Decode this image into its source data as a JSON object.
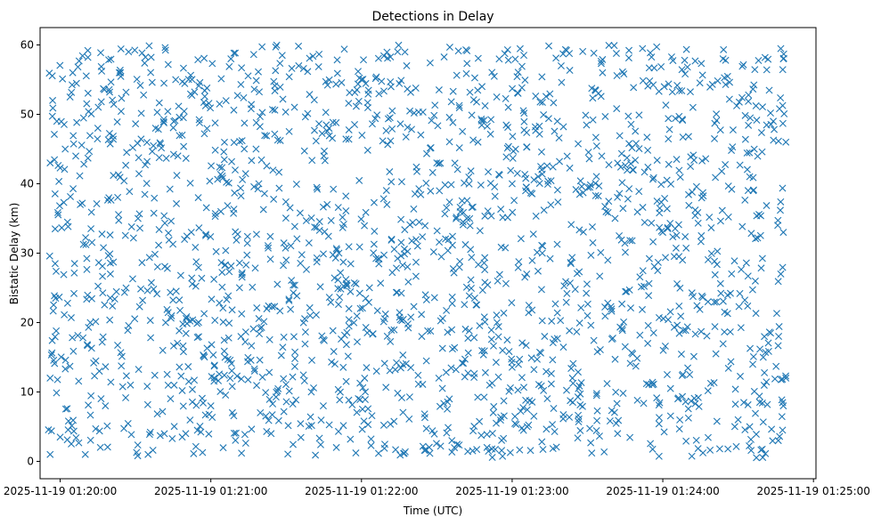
{
  "chart_data": {
    "type": "scatter",
    "title": "Detections in Delay",
    "xlabel": "Time (UTC)",
    "ylabel": "Bistatic Delay (km)",
    "marker": "x",
    "color": "#1f77b4",
    "grid": false,
    "legend": "none",
    "xlim": [
      "2025-11-19 01:19:52",
      "2025-11-19 01:25:01"
    ],
    "ylim": [
      -2.5,
      62.5
    ],
    "x_ticks": [
      "2025-11-19 01:20:00",
      "2025-11-19 01:21:00",
      "2025-11-19 01:22:00",
      "2025-11-19 01:23:00",
      "2025-11-19 01:24:00",
      "2025-11-19 01:25:00"
    ],
    "y_ticks": [
      "0",
      "10",
      "20",
      "30",
      "40",
      "50",
      "60"
    ],
    "y_tick_values": [
      0,
      10,
      20,
      30,
      40,
      50,
      60
    ],
    "x_range_of_detections": [
      "2025-11-19 01:19:55",
      "2025-11-19 01:24:49"
    ],
    "delay_range_of_detections": [
      0.5,
      60
    ],
    "detection_count": 2000,
    "points": [
      [
        "2025-11-19 01:19:56",
        1.0
      ],
      [
        "2025-11-19 01:19:56",
        12.0
      ],
      [
        "2025-11-19 01:19:56",
        43.0
      ],
      [
        "2025-11-19 01:19:57",
        52.0
      ],
      [
        "2025-11-19 01:19:58",
        28.5
      ],
      [
        "2025-11-19 01:19:58",
        33.5
      ],
      [
        "2025-11-19 01:20:00",
        3.5
      ],
      [
        "2025-11-19 01:20:02",
        45.0
      ],
      [
        "2025-11-19 01:20:05",
        56.0
      ],
      [
        "2025-11-19 01:20:08",
        37.0
      ],
      [
        "2025-11-19 01:20:10",
        1.0
      ],
      [
        "2025-11-19 01:20:12",
        20.0
      ],
      [
        "2025-11-19 01:20:15",
        48.0
      ],
      [
        "2025-11-19 01:20:18",
        8.0
      ],
      [
        "2025-11-19 01:20:20",
        27.0
      ],
      [
        "2025-11-19 01:20:24",
        56.0
      ],
      [
        "2025-11-19 01:20:28",
        11.0
      ],
      [
        "2025-11-19 01:20:31",
        35.0
      ],
      [
        "2025-11-19 01:20:35",
        1.0
      ],
      [
        "2025-11-19 01:20:38",
        48.0
      ],
      [
        "2025-11-19 01:20:42",
        20.0
      ],
      [
        "2025-11-19 01:20:46",
        55.0
      ],
      [
        "2025-11-19 01:20:50",
        4.0
      ],
      [
        "2025-11-19 01:20:55",
        38.0
      ],
      [
        "2025-11-19 01:21:00",
        8.0
      ],
      [
        "2025-11-19 01:21:04",
        36.0
      ],
      [
        "2025-11-19 01:21:08",
        58.0
      ],
      [
        "2025-11-19 01:21:12",
        18.0
      ],
      [
        "2025-11-19 01:21:18",
        45.0
      ],
      [
        "2025-11-19 01:21:24",
        4.0
      ],
      [
        "2025-11-19 01:21:30",
        29.0
      ],
      [
        "2025-11-19 01:21:35",
        57.0
      ],
      [
        "2025-11-19 01:21:40",
        10.0
      ],
      [
        "2025-11-19 01:21:45",
        44.0
      ],
      [
        "2025-11-19 01:21:50",
        2.0
      ],
      [
        "2025-11-19 01:21:55",
        22.0
      ],
      [
        "2025-11-19 01:22:00",
        55.0
      ],
      [
        "2025-11-19 01:22:06",
        13.0
      ],
      [
        "2025-11-19 01:22:12",
        32.0
      ],
      [
        "2025-11-19 01:22:18",
        57.0
      ],
      [
        "2025-11-19 01:22:24",
        18.0
      ],
      [
        "2025-11-19 01:22:30",
        43.0
      ],
      [
        "2025-11-19 01:22:36",
        3.0
      ],
      [
        "2025-11-19 01:22:42",
        35.0
      ],
      [
        "2025-11-19 01:22:48",
        54.0
      ],
      [
        "2025-11-19 01:22:54",
        20.0
      ],
      [
        "2025-11-19 01:23:00",
        40.0
      ],
      [
        "2025-11-19 01:23:06",
        5.0
      ],
      [
        "2025-11-19 01:23:12",
        30.0
      ],
      [
        "2025-11-19 01:23:18",
        49.0
      ],
      [
        "2025-11-19 01:23:24",
        12.0
      ],
      [
        "2025-11-19 01:23:30",
        21.0
      ],
      [
        "2025-11-19 01:23:36",
        56.0
      ],
      [
        "2025-11-19 01:23:42",
        4.0
      ],
      [
        "2025-11-19 01:23:48",
        42.0
      ],
      [
        "2025-11-19 01:23:54",
        17.0
      ],
      [
        "2025-11-19 01:24:00",
        33.0
      ],
      [
        "2025-11-19 01:24:06",
        9.0
      ],
      [
        "2025-11-19 01:24:12",
        51.0
      ],
      [
        "2025-11-19 01:24:18",
        23.0
      ],
      [
        "2025-11-19 01:24:24",
        58.0
      ],
      [
        "2025-11-19 01:24:30",
        6.0
      ],
      [
        "2025-11-19 01:24:36",
        39.0
      ],
      [
        "2025-11-19 01:24:40",
        15.0
      ],
      [
        "2025-11-19 01:24:44",
        49.0
      ],
      [
        "2025-11-19 01:24:46",
        3.0
      ],
      [
        "2025-11-19 01:24:47",
        27.0
      ],
      [
        "2025-11-19 01:24:48",
        8.0
      ],
      [
        "2025-11-19 01:24:48",
        33.0
      ],
      [
        "2025-11-19 01:24:48",
        58.0
      ],
      [
        "2025-11-19 01:24:49",
        12.0
      ],
      [
        "2025-11-19 01:24:49",
        46.0
      ]
    ]
  }
}
